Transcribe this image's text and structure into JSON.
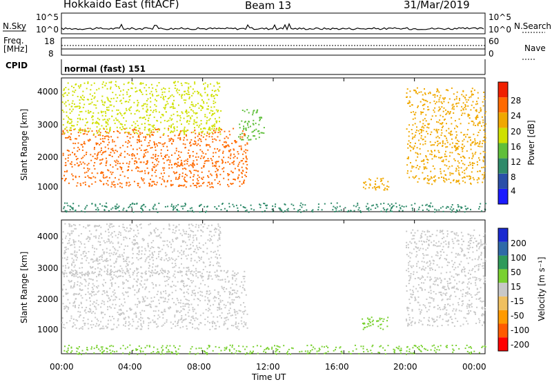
{
  "header": {
    "station": "Hokkaido East (fitACF)",
    "beam": "Beam 13",
    "date": "31/Mar/2019"
  },
  "strips": {
    "nsky_label": "N.Sky",
    "nsky_ticks": [
      "10^5",
      "10^0"
    ],
    "nsky_right_ticks": [
      "10^5",
      "10^0"
    ],
    "nsearch_label": "N.Search",
    "freq_label_1": "Freq.",
    "freq_label_2": "[MHz]",
    "freq_ticks": [
      "18",
      "8"
    ],
    "nave_ticks": [
      "60",
      "0"
    ],
    "nave_label": "Nave",
    "cpid_label": "CPID",
    "cpid_value": "normal (fast) 151"
  },
  "colors": {
    "power_scale": [
      "#1a1aff",
      "#2a4fa8",
      "#2f8a6a",
      "#5fbf3a",
      "#cfe000",
      "#f0a800",
      "#ff6a00",
      "#f02000"
    ],
    "velocity_scale": [
      "#ff0000",
      "#ff5a00",
      "#ff9a00",
      "#f0c060",
      "#c8c8c8",
      "#79d030",
      "#2f9a5a",
      "#2f6aa8",
      "#1a2ad0"
    ]
  },
  "chart_data": [
    {
      "type": "heatmap",
      "title": "",
      "ylabel": "Slant Range [km]",
      "ylim": [
        200,
        4500
      ],
      "yticks": [
        "4000",
        "3000",
        "2000",
        "1000"
      ],
      "xlim": [
        "00:00",
        "24:00"
      ],
      "colorbar_label": "Power [dB]",
      "colorbar_ticks": [
        "28",
        "24",
        "20",
        "16",
        "12",
        "8",
        "4"
      ],
      "colorbar_range": [
        0,
        32
      ],
      "regions": [
        {
          "name": "morning-lower-band",
          "x": [
            "00:00",
            "10:30"
          ],
          "y": [
            1000,
            2900
          ],
          "value_dB": 24
        },
        {
          "name": "morning-upper-band",
          "x": [
            "00:00",
            "09:00"
          ],
          "y": [
            2700,
            4400
          ],
          "value_dB": 18
        },
        {
          "name": "noon-patch",
          "x": [
            "10:00",
            "11:30"
          ],
          "y": [
            2500,
            3500
          ],
          "value_dB": 14
        },
        {
          "name": "afternoon-patch",
          "x": [
            "17:00",
            "18:30"
          ],
          "y": [
            900,
            1300
          ],
          "value_dB": 22
        },
        {
          "name": "evening-band",
          "x": [
            "19:30",
            "24:00"
          ],
          "y": [
            1100,
            4200
          ],
          "value_dB": 20
        },
        {
          "name": "ground-scatter-strip",
          "x": [
            "00:00",
            "24:00"
          ],
          "y": [
            200,
            500
          ],
          "value_dB": 10
        }
      ]
    },
    {
      "type": "heatmap",
      "title": "",
      "ylabel": "Slant Range [km]",
      "xlabel": "Time UT",
      "ylim": [
        200,
        4500
      ],
      "yticks": [
        "4000",
        "3000",
        "2000",
        "1000"
      ],
      "xticks": [
        "00:00",
        "04:00",
        "08:00",
        "12:00",
        "16:00",
        "20:00",
        "00:00"
      ],
      "colorbar_label": "Velocity [m s⁻¹]",
      "colorbar_ticks": [
        "200",
        "100",
        "50",
        "15",
        "-15",
        "-50",
        "-100",
        "-200"
      ],
      "colorbar_range": [
        -250,
        250
      ],
      "regions": [
        {
          "name": "morning-lower-band",
          "x": [
            "00:00",
            "10:30"
          ],
          "y": [
            1000,
            2900
          ],
          "value_ms": 0
        },
        {
          "name": "morning-upper-band",
          "x": [
            "00:00",
            "09:00"
          ],
          "y": [
            2700,
            4400
          ],
          "value_ms": 0
        },
        {
          "name": "afternoon-patch",
          "x": [
            "17:00",
            "18:30"
          ],
          "y": [
            1000,
            1400
          ],
          "value_ms": 60
        },
        {
          "name": "evening-band",
          "x": [
            "19:30",
            "24:00"
          ],
          "y": [
            1100,
            4200
          ],
          "value_ms": 0
        },
        {
          "name": "ground-scatter-strip",
          "x": [
            "00:00",
            "24:00"
          ],
          "y": [
            200,
            500
          ],
          "value_ms": 40
        }
      ]
    }
  ]
}
